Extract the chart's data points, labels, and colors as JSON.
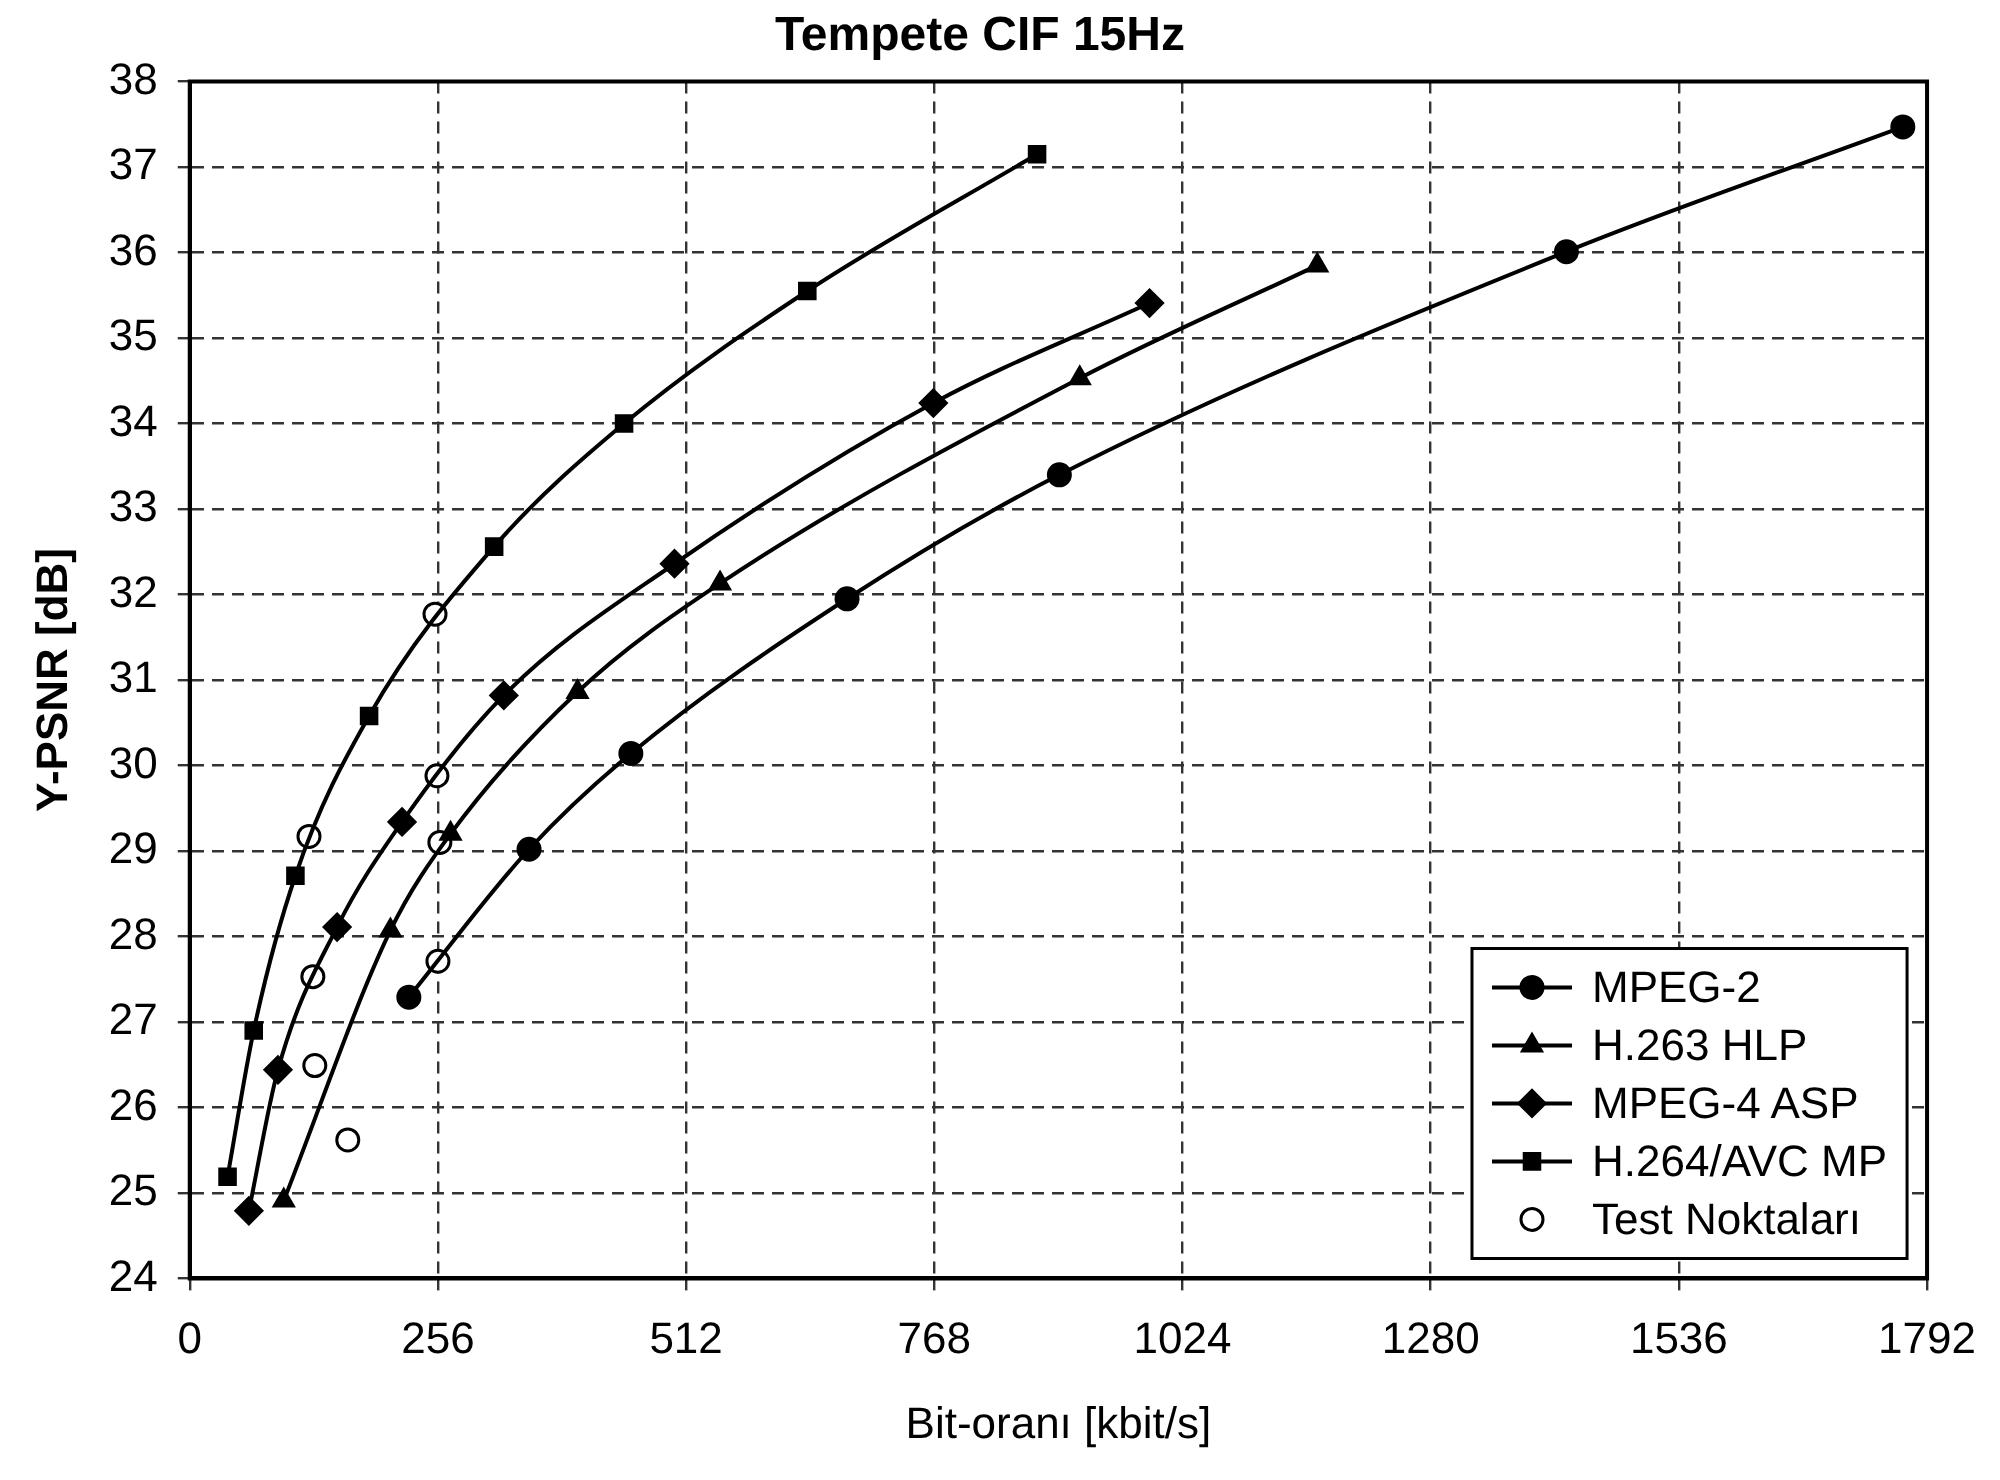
{
  "chart_data": {
    "type": "line",
    "title": "Tempete CIF 15Hz",
    "xlabel": "Bit-oranı [kbit/s]",
    "ylabel": "Y-PSNR [dB]",
    "xlim": [
      0,
      1792
    ],
    "xticks": [
      0,
      256,
      512,
      768,
      1024,
      1280,
      1536,
      1792
    ],
    "ylim": [
      24,
      38
    ],
    "yticks": [
      24,
      25,
      26,
      27,
      28,
      29,
      30,
      31,
      32,
      33,
      34,
      35,
      36,
      37,
      38
    ],
    "grid": true,
    "legend": "bottom right",
    "line_style": "solid",
    "series": [
      {
        "name": "MPEG-2",
        "color": "#000000",
        "marker": "circle",
        "x": [
          226,
          350,
          455,
          678,
          897,
          1420,
          1767
        ],
        "values": [
          27.29,
          29.02,
          30.14,
          31.95,
          33.4,
          36.01,
          37.47
        ]
      },
      {
        "name": "H.263 HLP",
        "color": "#000000",
        "marker": "triangle",
        "x": [
          97,
          207,
          269,
          400,
          547,
          918,
          1163
        ],
        "values": [
          24.91,
          28.07,
          29.2,
          30.86,
          32.13,
          34.53,
          35.85
        ]
      },
      {
        "name": "MPEG-4 ASP",
        "color": "#000000",
        "marker": "diamond",
        "x": [
          61,
          91,
          152,
          219,
          324,
          500,
          767,
          990
        ],
        "values": [
          24.79,
          26.44,
          28.11,
          29.34,
          30.82,
          32.36,
          34.24,
          35.41
        ]
      },
      {
        "name": "H.264/AVC MP",
        "color": "#000000",
        "marker": "square",
        "x": [
          39,
          66,
          109,
          185,
          314,
          448,
          637,
          874
        ],
        "values": [
          25.19,
          26.9,
          28.71,
          30.58,
          32.56,
          34.0,
          35.55,
          37.15
        ]
      },
      {
        "name": "Test Noktaları",
        "type": "scatter",
        "color": "#000000",
        "marker": "circle",
        "x": [
          163,
          256,
          129,
          258,
          127,
          255,
          123,
          253
        ],
        "values": [
          25.62,
          27.71,
          26.49,
          29.1,
          27.53,
          29.88,
          29.17,
          31.77
        ]
      }
    ]
  }
}
